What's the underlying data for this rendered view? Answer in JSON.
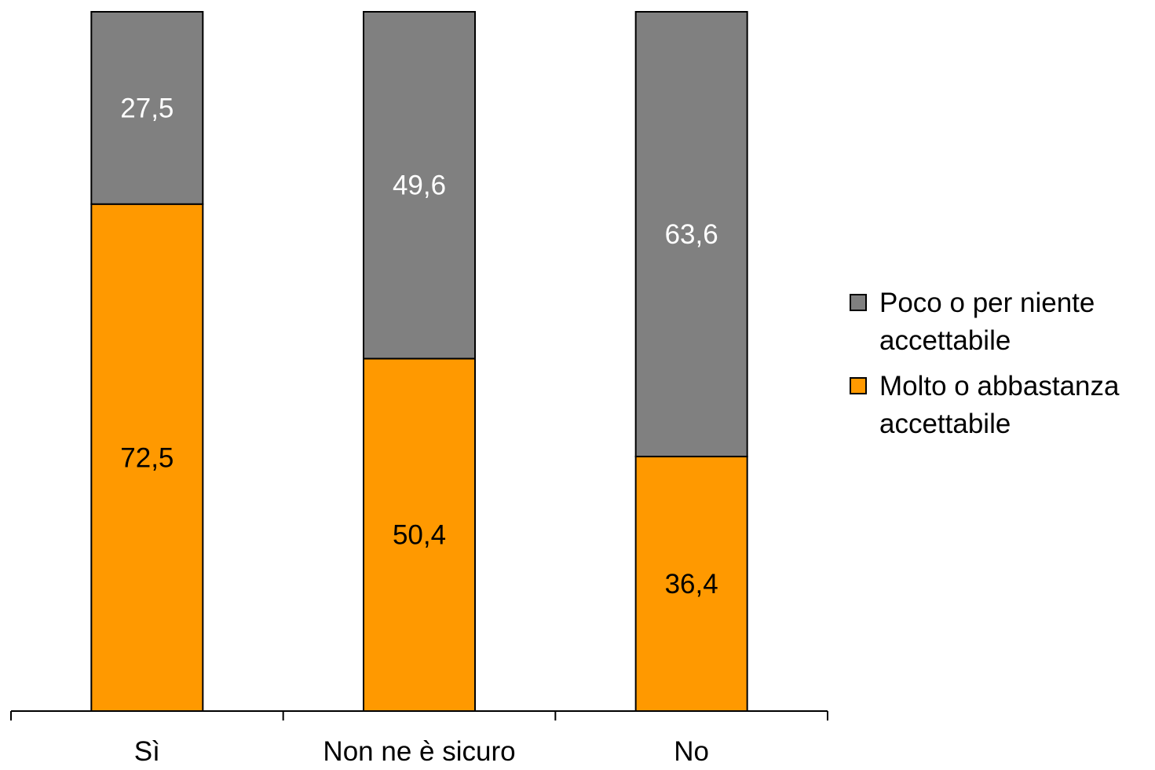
{
  "chart_data": {
    "type": "bar",
    "stacked": true,
    "percent_stacked": true,
    "categories": [
      "Sì",
      "Non ne è sicuro",
      "No"
    ],
    "series": [
      {
        "name": "Molto o abbastanza accettabile",
        "values": [
          72.5,
          50.4,
          36.4
        ],
        "labels": [
          "72,5",
          "50,4",
          "36,4"
        ],
        "color": "#FF9900",
        "label_color": "#000000"
      },
      {
        "name": "Poco o per niente accettabile",
        "values": [
          27.5,
          49.6,
          63.6
        ],
        "labels": [
          "27,5",
          "49,6",
          "63,6"
        ],
        "color": "#808080",
        "label_color": "#FFFFFF"
      }
    ],
    "ylim": [
      0,
      100
    ],
    "grid": false,
    "legend_position": "right",
    "legend_order": [
      "Poco o per niente accettabile",
      "Molto o abbastanza accettabile"
    ],
    "xlabel": "",
    "ylabel": "",
    "title": ""
  }
}
